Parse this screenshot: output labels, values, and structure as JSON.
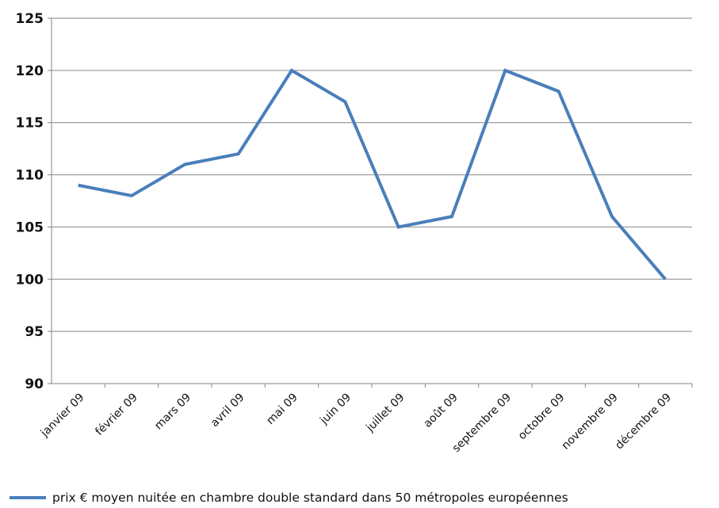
{
  "chart_data": {
    "type": "line",
    "title": "",
    "xlabel": "",
    "ylabel": "",
    "categories": [
      "janvier 09",
      "février 09",
      "mars 09",
      "avril 09",
      "mai 09",
      "juin 09",
      "juillet 09",
      "août 09",
      "septembre 09",
      "octobre 09",
      "novembre 09",
      "décembre 09"
    ],
    "series": [
      {
        "name": "prix € moyen nuitée en chambre double standard dans 50 métropoles européennes",
        "values": [
          109,
          108,
          111,
          112,
          120,
          117,
          105,
          106,
          120,
          118,
          106,
          100
        ],
        "color": "#4a7ebb"
      }
    ],
    "ylim": [
      90,
      125
    ],
    "yticks": [
      "90",
      "95",
      "100",
      "105",
      "110",
      "115",
      "120",
      "125"
    ],
    "grid": true,
    "legend_position": "bottom"
  }
}
